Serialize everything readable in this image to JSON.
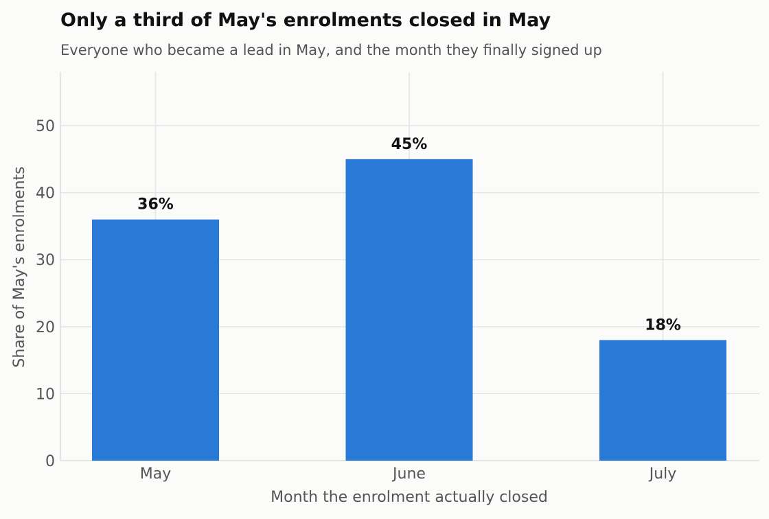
{
  "chart_data": {
    "type": "bar",
    "title": "Only a third of May's enrolments closed in May",
    "subtitle": "Everyone who became a lead in May, and the month they finally signed up",
    "xlabel": "Month the enrolment actually closed",
    "ylabel": "Share of May's enrolments",
    "categories": [
      "May",
      "June",
      "July"
    ],
    "values": [
      36,
      45,
      18
    ],
    "data_labels": [
      "36%",
      "45%",
      "18%"
    ],
    "ylim": [
      0,
      58
    ],
    "yticks": [
      0,
      10,
      20,
      30,
      40,
      50
    ],
    "grid": true,
    "legend": "none",
    "bar_color": "#2979d6",
    "background": "#fbfbfa",
    "grid_color": "#e3e3e3",
    "text_color": "#555555",
    "title_color": "#111111"
  }
}
